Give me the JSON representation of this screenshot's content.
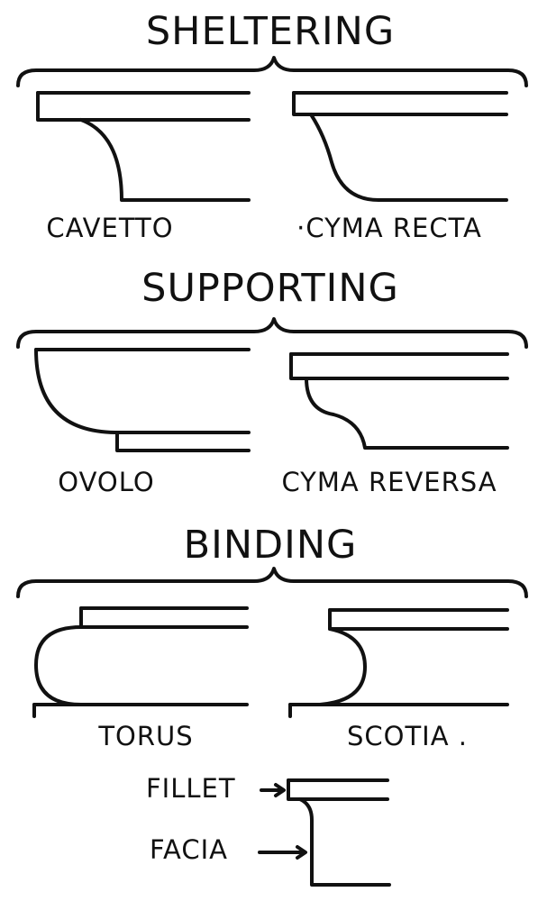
{
  "groups": [
    {
      "heading": "SHELTERING",
      "items": [
        "CAVETTO",
        "·CYMA RECTA"
      ]
    },
    {
      "heading": "SUPPORTING",
      "items": [
        "OVOLO",
        "CYMA REVERSA"
      ]
    },
    {
      "heading": "BINDING",
      "items": [
        "TORUS",
        "SCOTIA ."
      ]
    }
  ],
  "detail": {
    "fillet": "FILLET",
    "facia": "FACIA"
  }
}
